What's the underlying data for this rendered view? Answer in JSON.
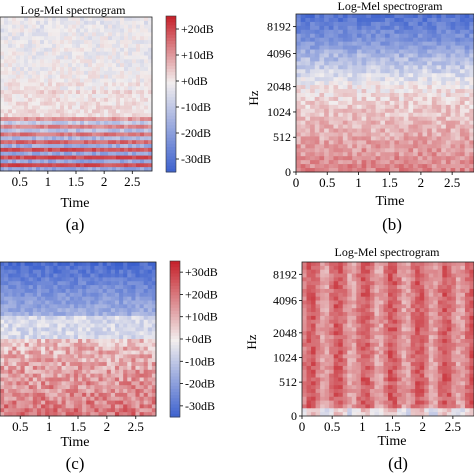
{
  "palette": {
    "low": "#3a5fcd",
    "mid": "#f2eeee",
    "high": "#c6242d"
  },
  "chart_data": [
    {
      "panel": "a",
      "type": "heatmap",
      "title": "Log-Mel spectrogram",
      "xlabel": "Time",
      "ylabel": "",
      "caption": "(a)",
      "x_ticks": [
        "0.5",
        "1",
        "1.5",
        "2",
        "2.5"
      ],
      "x_tick_values": [
        0.5,
        1,
        1.5,
        2,
        2.5
      ],
      "xlim": [
        0.15,
        2.85
      ],
      "y_ticks": [],
      "colorbar": {
        "ticks": [
          "+20dB",
          "+10dB",
          "+0dB",
          "-10dB",
          "-20dB",
          "-30dB"
        ],
        "tick_values": [
          20,
          10,
          0,
          -10,
          -20,
          -30
        ],
        "range": [
          -35,
          25
        ]
      },
      "pattern": "harmonic-bands"
    },
    {
      "panel": "b",
      "type": "heatmap",
      "title": "Log-Mel spectrogram",
      "xlabel": "Time",
      "ylabel": "Hz",
      "caption": "(b)",
      "x_ticks": [
        "0",
        "0.5",
        "1",
        "1.5",
        "2",
        "2.5"
      ],
      "x_tick_values": [
        0,
        0.5,
        1,
        1.5,
        2,
        2.5
      ],
      "xlim": [
        0,
        2.85
      ],
      "y_ticks": [
        "0",
        "512",
        "1024",
        "2048",
        "4096",
        "8192"
      ],
      "y_tick_values": [
        0,
        512,
        1024,
        2048,
        4096,
        8192
      ],
      "pattern": "cold-top"
    },
    {
      "panel": "c",
      "type": "heatmap",
      "title": "",
      "xlabel": "Time",
      "ylabel": "",
      "caption": "(c)",
      "x_ticks": [
        "0.5",
        "1",
        "1.5",
        "2",
        "2.5"
      ],
      "x_tick_values": [
        0.5,
        1,
        1.5,
        2,
        2.5
      ],
      "xlim": [
        0.15,
        2.85
      ],
      "y_ticks": [],
      "colorbar": {
        "ticks": [
          "+30dB",
          "+20dB",
          "+10dB",
          "+0dB",
          "-10dB",
          "-20dB",
          "-30dB"
        ],
        "tick_values": [
          30,
          20,
          10,
          0,
          -10,
          -20,
          -30
        ],
        "range": [
          -35,
          35
        ]
      },
      "pattern": "cold-top-warm-bottom"
    },
    {
      "panel": "d",
      "type": "heatmap",
      "title": "Log-Mel spectrogram",
      "xlabel": "Time",
      "ylabel": "Hz",
      "caption": "(d)",
      "x_ticks": [
        "0",
        "0.5",
        "1",
        "1.5",
        "2",
        "2.5"
      ],
      "x_tick_values": [
        0,
        0.5,
        1,
        1.5,
        2,
        2.5
      ],
      "xlim": [
        0,
        2.85
      ],
      "y_ticks": [
        "0",
        "512",
        "1024",
        "2048",
        "4096",
        "8192"
      ],
      "y_tick_values": [
        0,
        512,
        1024,
        2048,
        4096,
        8192
      ],
      "pattern": "warm-all"
    }
  ]
}
